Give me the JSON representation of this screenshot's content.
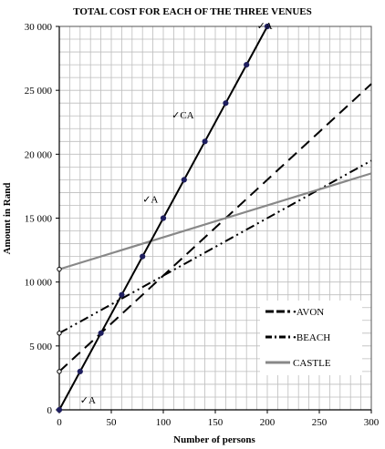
{
  "chart_data": {
    "type": "line",
    "title": "TOTAL COST FOR EACH OF THE THREE VENUES",
    "xlabel": "Number of persons",
    "ylabel": "Amount in Rand",
    "xlim": [
      0,
      300
    ],
    "ylim": [
      0,
      30000
    ],
    "x_ticks": [
      "0",
      "50",
      "100",
      "150",
      "200",
      "250",
      "300"
    ],
    "y_ticks": [
      "0",
      "5 000",
      "10 000",
      "15 000",
      "20 000",
      "25 000",
      "30 000"
    ],
    "grid": true,
    "legend_position": "right",
    "series": [
      {
        "name": "AVON",
        "style": "dashed",
        "color": "#000000",
        "x": [
          0,
          300
        ],
        "y": [
          3000,
          25500
        ]
      },
      {
        "name": "BEACH",
        "style": "dash-dot-dot",
        "color": "#000000",
        "x": [
          0,
          300
        ],
        "y": [
          6000,
          19500
        ]
      },
      {
        "name": "CASTLE",
        "style": "solid",
        "color": "#888888",
        "x": [
          0,
          300
        ],
        "y": [
          11000,
          18500
        ]
      },
      {
        "name": "",
        "style": "solid",
        "color": "#000000",
        "markers": true,
        "x": [
          0,
          20,
          40,
          60,
          80,
          100,
          120,
          140,
          160,
          180,
          200
        ],
        "y": [
          0,
          3000,
          6000,
          9000,
          12000,
          15000,
          18000,
          21000,
          24000,
          27000,
          30000
        ]
      }
    ],
    "intercept_markers": [
      {
        "x": 0,
        "y": 3000
      },
      {
        "x": 0,
        "y": 6000
      },
      {
        "x": 0,
        "y": 11000
      }
    ],
    "annotations": [
      {
        "text": "✓A",
        "x": 190,
        "y": 29800
      },
      {
        "text": "✓CA",
        "x": 108,
        "y": 22800
      },
      {
        "text": "✓A",
        "x": 80,
        "y": 16200
      },
      {
        "text": "✓A",
        "x": 20,
        "y": 500
      }
    ]
  }
}
